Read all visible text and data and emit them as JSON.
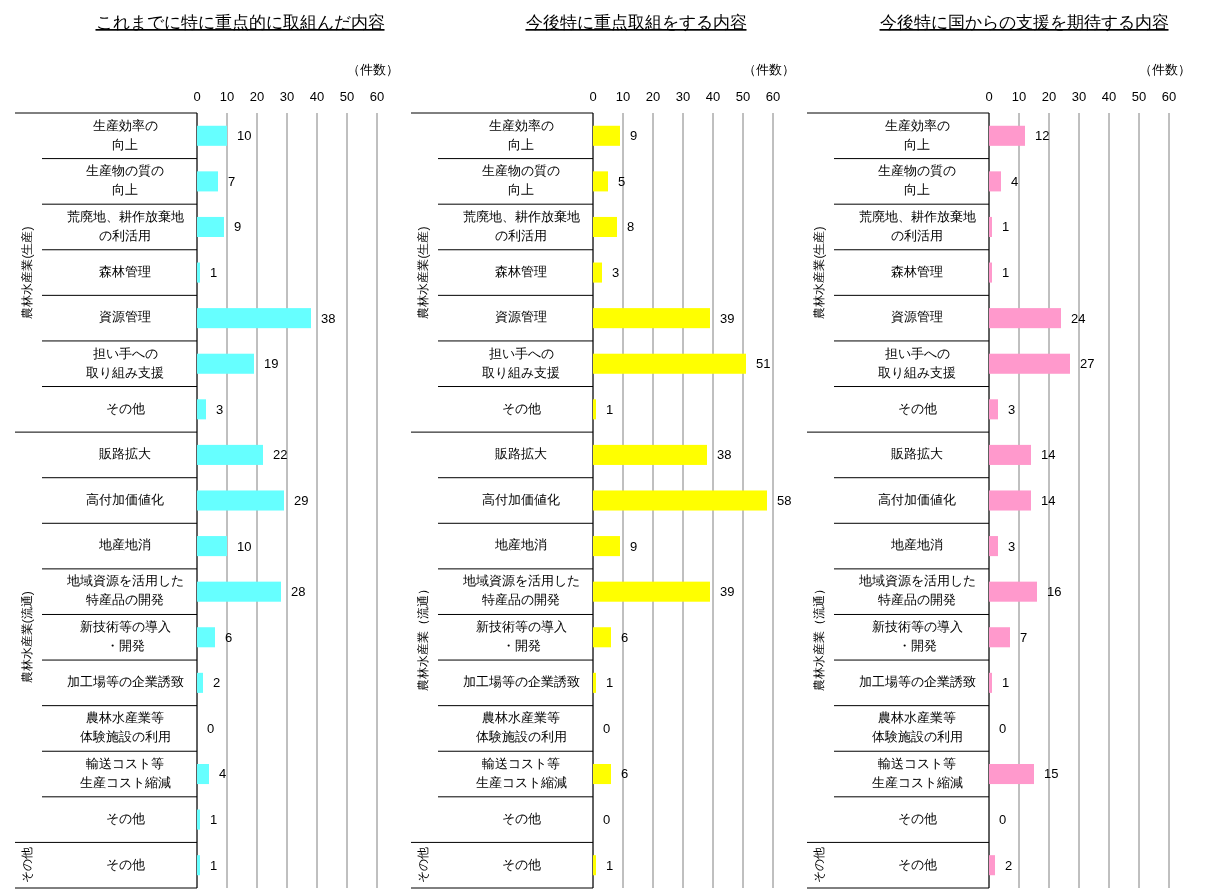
{
  "chart_data": [
    {
      "type": "bar",
      "orientation": "horizontal",
      "title": "これまでに特に重点的に取組んだ内容",
      "xlabel": "（件数）",
      "categories": [
        "生産効率の向上",
        "生産物の質の向上",
        "荒廃地、耕作放棄地の利活用",
        "森林管理",
        "資源管理",
        "担い手への取り組み支援",
        "その他",
        "販路拡大",
        "高付加価値化",
        "地産地消",
        "地域資源を活用した特産品の開発",
        "新技術等の導入・開発",
        "加工場等の企業誘致",
        "農林水産業等体験施設の利用",
        "輸送コスト等生産コスト縮減",
        "その他",
        "その他"
      ],
      "values": [
        10,
        7,
        9,
        1,
        38,
        19,
        3,
        22,
        29,
        10,
        28,
        6,
        2,
        0,
        4,
        1,
        1
      ],
      "color": "#66ffff",
      "xlim": [
        0,
        60
      ],
      "xticks": [
        0,
        10,
        20,
        30,
        40,
        50,
        60
      ],
      "grid": "x",
      "data_labels": true,
      "annotations": [
        "農林水産業(生産)",
        "農林水産業(流通)",
        "その他"
      ]
    },
    {
      "type": "bar",
      "orientation": "horizontal",
      "title": "今後特に重点取組をする内容",
      "xlabel": "（件数）",
      "categories": [
        "生産効率の向上",
        "生産物の質の向上",
        "荒廃地、耕作放棄地の利活用",
        "森林管理",
        "資源管理",
        "担い手への取り組み支援",
        "その他",
        "販路拡大",
        "高付加価値化",
        "地産地消",
        "地域資源を活用した特産品の開発",
        "新技術等の導入・開発",
        "加工場等の企業誘致",
        "農林水産業等体験施設の利用",
        "輸送コスト等生産コスト縮減",
        "その他",
        "その他"
      ],
      "values": [
        9,
        5,
        8,
        3,
        39,
        51,
        1,
        38,
        58,
        9,
        39,
        6,
        1,
        0,
        6,
        0,
        1
      ],
      "color": "#ffff00",
      "xlim": [
        0,
        60
      ],
      "xticks": [
        0,
        10,
        20,
        30,
        40,
        50,
        60
      ],
      "grid": "x",
      "data_labels": true,
      "annotations": [
        "農林水産業(生産)",
        "農林水産業（流通）",
        "その他"
      ]
    },
    {
      "type": "bar",
      "orientation": "horizontal",
      "title": "今後特に国からの支援を期待する内容",
      "xlabel": "（件数）",
      "categories": [
        "生産効率の向上",
        "生産物の質の向上",
        "荒廃地、耕作放棄地の利活用",
        "森林管理",
        "資源管理",
        "担い手への取り組み支援",
        "その他",
        "販路拡大",
        "高付加価値化",
        "地産地消",
        "地域資源を活用した特産品の開発",
        "新技術等の導入・開発",
        "加工場等の企業誘致",
        "農林水産業等体験施設の利用",
        "輸送コスト等生産コスト縮減",
        "その他",
        "その他"
      ],
      "values": [
        12,
        4,
        1,
        1,
        24,
        27,
        3,
        14,
        14,
        3,
        16,
        7,
        1,
        0,
        15,
        0,
        2
      ],
      "color": "#ff99cc",
      "xlim": [
        0,
        60
      ],
      "xticks": [
        0,
        10,
        20,
        30,
        40,
        50,
        60
      ],
      "grid": "x",
      "data_labels": true,
      "annotations": [
        "農林水産業(生産)",
        "農林水産業（流通）",
        "その他"
      ]
    }
  ]
}
